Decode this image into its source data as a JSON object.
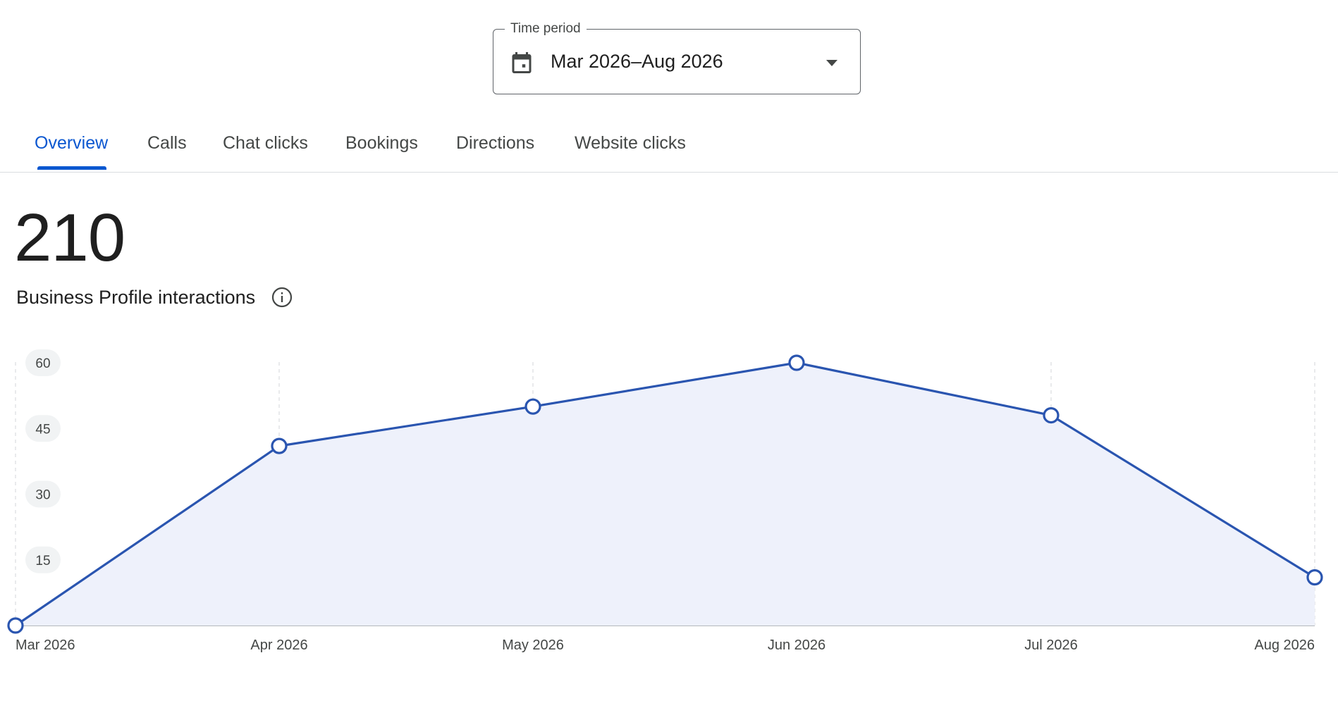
{
  "time_period": {
    "legend": "Time period",
    "value": "Mar 2026–Aug 2026",
    "icon": "calendar-icon"
  },
  "tabs": [
    {
      "label": "Overview",
      "active": true
    },
    {
      "label": "Calls",
      "active": false
    },
    {
      "label": "Chat clicks",
      "active": false
    },
    {
      "label": "Bookings",
      "active": false
    },
    {
      "label": "Directions",
      "active": false
    },
    {
      "label": "Website clicks",
      "active": false
    }
  ],
  "summary": {
    "total": "210",
    "label": "Business Profile interactions",
    "info_icon": "info-icon"
  },
  "colors": {
    "accent": "#0b57d0",
    "line": "#2a55b0",
    "fill": "#eef1fb"
  },
  "chart_data": {
    "type": "area",
    "categories": [
      "Mar 2026",
      "Apr 2026",
      "May 2026",
      "Jun 2026",
      "Jul 2026",
      "Aug 2026"
    ],
    "values": [
      0,
      41,
      50,
      60,
      48,
      11
    ],
    "ylim": [
      0,
      60
    ],
    "yticks": [
      "15",
      "30",
      "45",
      "60"
    ],
    "grid": "vertical dashed",
    "legend": "none"
  }
}
